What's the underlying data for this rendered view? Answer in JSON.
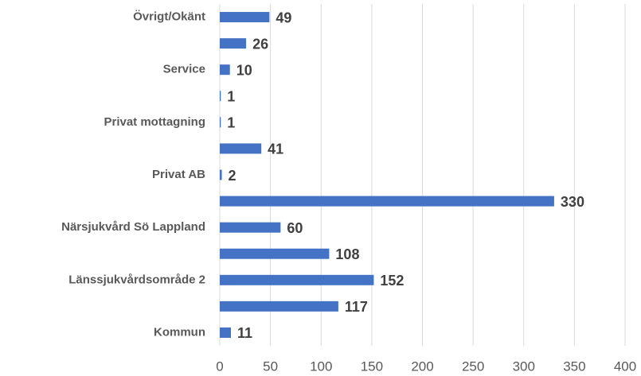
{
  "chart_data": {
    "type": "bar",
    "orientation": "horizontal",
    "categories": [
      "Övrigt/Okänt",
      null,
      "Service",
      null,
      "Privat mottagning",
      null,
      "Privat AB",
      null,
      "Närsjukvård Sö Lappland",
      null,
      "Länssjukvårdsområde 2",
      null,
      "Kommun"
    ],
    "values": [
      49,
      26,
      10,
      1,
      1,
      41,
      2,
      330,
      60,
      108,
      152,
      117,
      11
    ],
    "color": "#4472c4",
    "xlim": [
      0,
      400
    ],
    "xticks": [
      0,
      50,
      100,
      150,
      200,
      250,
      300,
      350,
      400
    ],
    "grid": true
  }
}
